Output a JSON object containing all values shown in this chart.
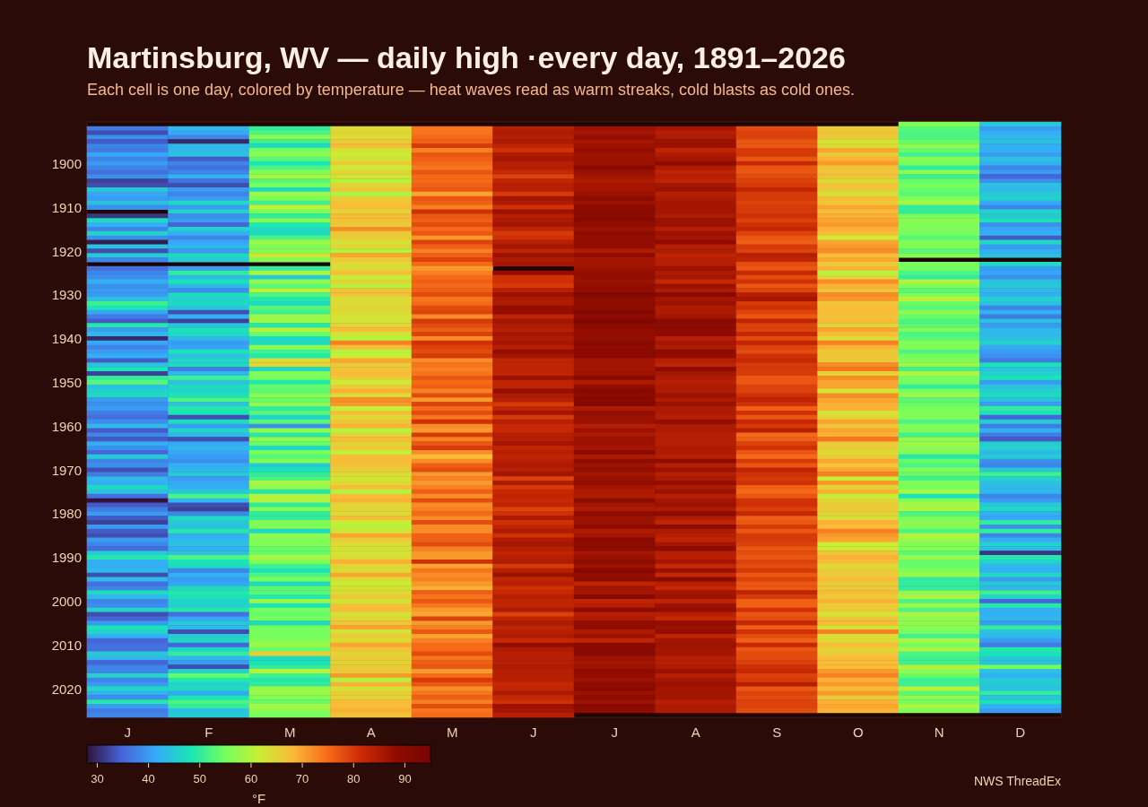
{
  "chart_data": {
    "type": "heatmap",
    "title": "Martinsburg, WV — daily high ·every day, 1891–2026",
    "subtitle": "Each cell is one day, colored by temperature — heat waves read as warm streaks, cold blasts as cold ones.",
    "categories": [
      "J",
      "F",
      "M",
      "A",
      "M",
      "J",
      "J",
      "A",
      "S",
      "O",
      "N",
      "D"
    ],
    "y_categories": [
      null,
      null,
      null,
      null,
      null,
      null,
      null,
      null,
      null,
      "1900",
      null,
      null,
      null,
      null,
      null,
      null,
      null,
      null,
      null,
      "1910",
      null,
      null,
      null,
      null,
      null,
      null,
      null,
      null,
      null,
      "1920",
      null,
      null,
      null,
      null,
      null,
      null,
      null,
      null,
      null,
      "1930",
      null,
      null,
      null,
      null,
      null,
      null,
      null,
      null,
      null,
      "1940",
      null,
      null,
      null,
      null,
      null,
      null,
      null,
      null,
      null,
      "1950",
      null,
      null,
      null,
      null,
      null,
      null,
      null,
      null,
      null,
      "1960",
      null,
      null,
      null,
      null,
      null,
      null,
      null,
      null,
      null,
      "1970",
      null,
      null,
      null,
      null,
      null,
      null,
      null,
      null,
      null,
      "1980",
      null,
      null,
      null,
      null,
      null,
      null,
      null,
      null,
      null,
      "1990",
      null,
      null,
      null,
      null,
      null,
      null,
      null,
      null,
      null,
      "2000",
      null,
      null,
      null,
      null,
      null,
      null,
      null,
      null,
      null,
      "2010",
      null,
      null,
      null,
      null,
      null,
      null,
      null,
      null,
      null,
      "2020",
      null,
      null,
      null,
      null,
      null,
      null
    ],
    "cells": [
      [
        null,
        null,
        null,
        null,
        null,
        null,
        null,
        null,
        null,
        null,
        56,
        45
      ],
      [
        37,
        43,
        50,
        64,
        74,
        84,
        87,
        86,
        78,
        66,
        53,
        40
      ],
      [
        33,
        41,
        52,
        65,
        74,
        85,
        86,
        84,
        79,
        67,
        52,
        42
      ],
      [
        39,
        38,
        57,
        64,
        75,
        84,
        88,
        85,
        79,
        66,
        52,
        43
      ],
      [
        34,
        30,
        51,
        66,
        76,
        85,
        86,
        87,
        77,
        63,
        54,
        44
      ],
      [
        38,
        43,
        47,
        68,
        80,
        83,
        87,
        87,
        77,
        64,
        57,
        42
      ],
      [
        37,
        43,
        55,
        63,
        73,
        81,
        88,
        83,
        80,
        70,
        54,
        42
      ],
      [
        41,
        44,
        57,
        62,
        77,
        85,
        87,
        85,
        80,
        66,
        51,
        40
      ],
      [
        38,
        34,
        53,
        63,
        76,
        86,
        87,
        86,
        77,
        69,
        57,
        44
      ],
      [
        40,
        38,
        48,
        66,
        75,
        84,
        87,
        89,
        82,
        71,
        55,
        42
      ],
      [
        38,
        36,
        52,
        62,
        74,
        84,
        90,
        85,
        77,
        67,
        50,
        38
      ],
      [
        36,
        38,
        56,
        65,
        77,
        82,
        87,
        83,
        77,
        67,
        57,
        40
      ],
      [
        39,
        42,
        59,
        63,
        75,
        79,
        86,
        84,
        78,
        67,
        51,
        35
      ],
      [
        32,
        36,
        53,
        60,
        75,
        83,
        85,
        83,
        79,
        64,
        54,
        39
      ],
      [
        33,
        33,
        55,
        65,
        76,
        84,
        86,
        86,
        80,
        67,
        55,
        44
      ],
      [
        45,
        40,
        47,
        67,
        77,
        84,
        86,
        87,
        83,
        66,
        54,
        43
      ],
      [
        41,
        38,
        58,
        59,
        70,
        80,
        87,
        84,
        80,
        63,
        53,
        45
      ],
      [
        40,
        40,
        56,
        66,
        77,
        86,
        89,
        85,
        80,
        68,
        56,
        46
      ],
      [
        44,
        47,
        51,
        67,
        76,
        85,
        87,
        86,
        79,
        66,
        59,
        41
      ],
      [
        39,
        40,
        61,
        68,
        73,
        81,
        89,
        86,
        80,
        70,
        50,
        38
      ],
      [
        null,
        46,
        55,
        65,
        81,
        87,
        89,
        86,
        80,
        68,
        50,
        46
      ],
      [
        31,
        39,
        50,
        68,
        77,
        84,
        89,
        85,
        81,
        69,
        55,
        45
      ],
      [
        47,
        40,
        56,
        67,
        76,
        85,
        90,
        87,
        79,
        70,
        57,
        48
      ],
      [
        42,
        35,
        49,
        66,
        78,
        86,
        88,
        87,
        81,
        71,
        56,
        39
      ],
      [
        38,
        46,
        47,
        72,
        75,
        83,
        87,
        84,
        82,
        69,
        56,
        41
      ],
      [
        46,
        42,
        47,
        66,
        77,
        80,
        89,
        87,
        79,
        68,
        55,
        42
      ],
      [
        39,
        38,
        52,
        66,
        71,
        81,
        88,
        86,
        77,
        62,
        53,
        34
      ],
      [
        29,
        41,
        58,
        63,
        79,
        84,
        88,
        89,
        76,
        70,
        56,
        47
      ],
      [
        44,
        43,
        56,
        65,
        76,
        86,
        88,
        84,
        80,
        71,
        56,
        40
      ],
      [
        33,
        40,
        56,
        60,
        73,
        83,
        85,
        85,
        79,
        72,
        53,
        42
      ],
      [
        45,
        47,
        63,
        70,
        76,
        87,
        89,
        83,
        84,
        68,
        56,
        44
      ],
      [
        38,
        45,
        56,
        66,
        79,
        85,
        86,
        84,
        83,
        70,
        null,
        null
      ],
      [
        null,
        null,
        null,
        64,
        75,
        86,
        86,
        84,
        78,
        66,
        55,
        47
      ],
      [
        36,
        40,
        50,
        64,
        71,
        null,
        87,
        87,
        77,
        69,
        55,
        40
      ],
      [
        38,
        50,
        59,
        68,
        73,
        88,
        88,
        85,
        82,
        60,
        52,
        41
      ],
      [
        39,
        43,
        45,
        61,
        75,
        81,
        88,
        86,
        78,
        65,
        50,
        39
      ],
      [
        42,
        48,
        57,
        65,
        76,
        81,
        87,
        82,
        81,
        72,
        60,
        44
      ],
      [
        39,
        43,
        53,
        60,
        75,
        80,
        88,
        87,
        77,
        69,
        56,
        45
      ],
      [
        40,
        39,
        60,
        67,
        76,
        84,
        88,
        85,
        79,
        67,
        53,
        43
      ],
      [
        40,
        47,
        52,
        67,
        78,
        87,
        92,
        90,
        84,
        72,
        55,
        42
      ],
      [
        44,
        46,
        49,
        64,
        74,
        85,
        89,
        86,
        86,
        71,
        61,
        46
      ],
      [
        51,
        47,
        47,
        64,
        75,
        85,
        89,
        87,
        80,
        67,
        54,
        44
      ],
      [
        48,
        44,
        53,
        65,
        78,
        88,
        89,
        85,
        81,
        68,
        53,
        38
      ],
      [
        41,
        33,
        51,
        64,
        79,
        88,
        92,
        85,
        79,
        68,
        57,
        42
      ],
      [
        37,
        42,
        58,
        63,
        72,
        83,
        89,
        86,
        77,
        67,
        54,
        37
      ],
      [
        34,
        32,
        58,
        63,
        80,
        86,
        93,
        90,
        83,
        68,
        52,
        44
      ],
      [
        49,
        44,
        49,
        65,
        78,
        85,
        89,
        89,
        79,
        65,
        53,
        40
      ],
      [
        40,
        48,
        60,
        68,
        76,
        84,
        88,
        89,
        79,
        70,
        56,
        43
      ],
      [
        43,
        47,
        54,
        63,
        79,
        86,
        88,
        89,
        82,
        68,
        52,
        43
      ],
      [
        30,
        43,
        47,
        60,
        72,
        85,
        88,
        84,
        78,
        64,
        53,
        44
      ],
      [
        41,
        40,
        47,
        73,
        81,
        86,
        90,
        86,
        83,
        73,
        56,
        46
      ],
      [
        38,
        41,
        57,
        68,
        79,
        84,
        89,
        85,
        79,
        69,
        56,
        41
      ],
      [
        40,
        48,
        51,
        60,
        78,
        88,
        90,
        89,
        78,
        66,
        52,
        40
      ],
      [
        42,
        44,
        49,
        62,
        80,
        86,
        90,
        88,
        81,
        67,
        55,
        39
      ],
      [
        34,
        46,
        64,
        70,
        72,
        83,
        86,
        84,
        82,
        66,
        56,
        37
      ],
      [
        44,
        47,
        65,
        66,
        74,
        83,
        86,
        83,
        80,
        72,
        58,
        48
      ],
      [
        48,
        37,
        47,
        67,
        73,
        83,
        86,
        89,
        80,
        74,
        51,
        44
      ],
      [
        32,
        43,
        56,
        68,
        74,
        83,
        87,
        86,
        80,
        65,
        60,
        46
      ],
      [
        50,
        51,
        55,
        66,
        77,
        87,
        90,
        85,
        77,
        72,
        55,
        48
      ],
      [
        53,
        44,
        49,
        62,
        75,
        83,
        85,
        84,
        77,
        70,
        55,
        40
      ],
      [
        44,
        47,
        54,
        66,
        76,
        83,
        88,
        85,
        79,
        70,
        50,
        44
      ],
      [
        46,
        46,
        53,
        69,
        73,
        88,
        91,
        85,
        79,
        63,
        55,
        46
      ],
      [
        47,
        48,
        57,
        64,
        78,
        85,
        89,
        87,
        81,
        72,
        58,
        47
      ],
      [
        40,
        52,
        54,
        72,
        71,
        84,
        90,
        85,
        83,
        70,
        53,
        44
      ],
      [
        39,
        44,
        57,
        71,
        79,
        80,
        92,
        87,
        81,
        69,
        54,
        40
      ],
      [
        40,
        49,
        50,
        61,
        75,
        83,
        85,
        85,
        76,
        69,
        55,
        50
      ],
      [
        37,
        48,
        53,
        68,
        78,
        86,
        88,
        85,
        81,
        63,
        56,
        48
      ],
      [
        36,
        33,
        46,
        64,
        74,
        80,
        87,
        84,
        77,
        65,
        56,
        35
      ],
      [
        39,
        47,
        53,
        67,
        81,
        84,
        87,
        88,
        82,
        70,
        52,
        45
      ],
      [
        43,
        40,
        39,
        69,
        72,
        82,
        84,
        85,
        80,
        67,
        56,
        37
      ],
      [
        34,
        46,
        57,
        60,
        71,
        82,
        87,
        85,
        84,
        70,
        56,
        42
      ],
      [
        38,
        43,
        49,
        65,
        80,
        84,
        85,
        84,
        75,
        69,
        51,
        37
      ],
      [
        34,
        33,
        57,
        68,
        73,
        84,
        87,
        84,
        76,
        74,
        57,
        34
      ],
      [
        42,
        41,
        54,
        65,
        77,
        86,
        87,
        84,
        79,
        66,
        58,
        45
      ],
      [
        39,
        43,
        47,
        66,
        80,
        83,
        86,
        85,
        81,
        66,
        57,
        46
      ],
      [
        35,
        41,
        55,
        61,
        72,
        84,
        90,
        85,
        77,
        64,
        56,
        43
      ],
      [
        45,
        40,
        53,
        68,
        68,
        83,
        85,
        84,
        75,
        66,
        49,
        45
      ],
      [
        38,
        39,
        56,
        68,
        72,
        84,
        89,
        89,
        80,
        70,
        54,
        39
      ],
      [
        39,
        42,
        45,
        67,
        76,
        85,
        87,
        84,
        77,
        67,
        52,
        38
      ],
      [
        33,
        43,
        48,
        66,
        78,
        84,
        88,
        87,
        83,
        70,
        56,
        45
      ],
      [
        37,
        45,
        50,
        64,
        71,
        86,
        86,
        84,
        81,
        73,
        54,
        51
      ],
      [
        43,
        40,
        52,
        63,
        73,
        79,
        87,
        85,
        80,
        62,
        51,
        46
      ],
      [
        42,
        41,
        59,
        64,
        71,
        85,
        88,
        88,
        81,
        71,
        56,
        44
      ],
      [
        47,
        42,
        57,
        68,
        73,
        80,
        86,
        85,
        76,
        65,
        55,
        43
      ],
      [
        44,
        45,
        49,
        60,
        76,
        82,
        85,
        87,
        75,
        69,
        59,
        43
      ],
      [
        36,
        52,
        60,
        68,
        72,
        83,
        85,
        84,
        77,
        61,
        48,
        38
      ],
      [
        27,
        43,
        60,
        69,
        78,
        82,
        89,
        86,
        81,
        65,
        56,
        40
      ],
      [
        34,
        33,
        50,
        65,
        72,
        83,
        86,
        87,
        81,
        66,
        59,
        45
      ],
      [
        37,
        32,
        56,
        65,
        73,
        79,
        85,
        85,
        79,
        66,
        59,
        47
      ],
      [
        40,
        38,
        50,
        64,
        75,
        81,
        89,
        89,
        82,
        65,
        52,
        42
      ],
      [
        34,
        47,
        50,
        68,
        72,
        85,
        87,
        85,
        76,
        64,
        55,
        41
      ],
      [
        32,
        45,
        56,
        62,
        78,
        81,
        87,
        83,
        77,
        69,
        57,
        50
      ],
      [
        40,
        44,
        56,
        60,
        72,
        83,
        89,
        89,
        80,
        68,
        56,
        39
      ],
      [
        34,
        49,
        47,
        63,
        72,
        85,
        85,
        85,
        77,
        73,
        52,
        50
      ],
      [
        33,
        42,
        57,
        70,
        76,
        81,
        86,
        84,
        80,
        71,
        60,
        38
      ],
      [
        40,
        43,
        56,
        66,
        76,
        85,
        91,
        83,
        80,
        70,
        58,
        42
      ],
      [
        38,
        44,
        56,
        64,
        78,
        86,
        89,
        86,
        79,
        62,
        56,
        46
      ],
      [
        36,
        42,
        54,
        63,
        73,
        84,
        89,
        89,
        77,
        62,
        56,
        43
      ],
      [
        45,
        44,
        54,
        63,
        71,
        83,
        86,
        84,
        78,
        67,
        53,
        31
      ],
      [
        49,
        52,
        59,
        64,
        71,
        84,
        87,
        84,
        77,
        69,
        58,
        49
      ],
      [
        42,
        48,
        56,
        69,
        81,
        85,
        89,
        86,
        79,
        68,
        54,
        46
      ],
      [
        42,
        47,
        51,
        65,
        70,
        80,
        87,
        82,
        78,
        64,
        54,
        43
      ],
      [
        43,
        38,
        48,
        64,
        74,
        84,
        91,
        87,
        80,
        66,
        56,
        42
      ],
      [
        33,
        42,
        52,
        70,
        72,
        87,
        88,
        82,
        77,
        66,
        58,
        47
      ],
      [
        43,
        40,
        55,
        64,
        73,
        83,
        89,
        89,
        79,
        68,
        50,
        40
      ],
      [
        36,
        41,
        47,
        62,
        71,
        84,
        83,
        84,
        77,
        66,
        50,
        45
      ],
      [
        38,
        47,
        53,
        63,
        69,
        81,
        86,
        82,
        77,
        66,
        50,
        43
      ],
      [
        47,
        49,
        53,
        64,
        76,
        82,
        86,
        86,
        83,
        68,
        57,
        51
      ],
      [
        43,
        48,
        49,
        66,
        74,
        84,
        91,
        87,
        80,
        66,
        59,
        46
      ],
      [
        38,
        46,
        58,
        63,
        77,
        83,
        83,
        83,
        76,
        69,
        52,
        35
      ],
      [
        39,
        46,
        48,
        67,
        74,
        83,
        84,
        87,
        76,
        66,
        58,
        49
      ],
      [
        46,
        49,
        55,
        68,
        71,
        85,
        89,
        88,
        81,
        66,
        52,
        42
      ],
      [
        33,
        36,
        54,
        63,
        70,
        79,
        84,
        84,
        77,
        63,
        59,
        42
      ],
      [
        35,
        41,
        55,
        65,
        79,
        83,
        85,
        82,
        78,
        67,
        57,
        43
      ],
      [
        40,
        45,
        47,
        67,
        71,
        85,
        88,
        88,
        82,
        68,
        57,
        40
      ],
      [
        48,
        43,
        55,
        70,
        73,
        83,
        88,
        87,
        76,
        63,
        57,
        50
      ],
      [
        46,
        33,
        55,
        63,
        77,
        84,
        85,
        88,
        81,
        73,
        55,
        44
      ],
      [
        42,
        45,
        55,
        66,
        70,
        85,
        87,
        83,
        78,
        64,
        51,
        43
      ],
      [
        35,
        47,
        56,
        64,
        73,
        82,
        83,
        86,
        76,
        64,
        59,
        40
      ],
      [
        36,
        35,
        58,
        70,
        75,
        88,
        91,
        87,
        82,
        68,
        55,
        37
      ],
      [
        36,
        46,
        54,
        67,
        75,
        85,
        91,
        86,
        77,
        65,
        59,
        49
      ],
      [
        45,
        50,
        66,
        65,
        78,
        84,
        91,
        86,
        78,
        66,
        52,
        48
      ],
      [
        43,
        43,
        47,
        66,
        74,
        84,
        87,
        84,
        78,
        68,
        51,
        45
      ],
      [
        35,
        40,
        48,
        65,
        76,
        84,
        86,
        84,
        79,
        68,
        51,
        44
      ],
      [
        38,
        33,
        50,
        66,
        77,
        85,
        87,
        85,
        81,
        68,
        60,
        55
      ],
      [
        38,
        46,
        60,
        66,
        71,
        84,
        89,
        87,
        82,
        71,
        57,
        44
      ],
      [
        46,
        54,
        51,
        71,
        75,
        84,
        88,
        84,
        79,
        73,
        54,
        42
      ],
      [
        38,
        49,
        49,
        60,
        80,
        84,
        87,
        86,
        80,
        69,
        51,
        45
      ],
      [
        40,
        46,
        50,
        69,
        77,
        82,
        89,
        87,
        84,
        71,
        51,
        45
      ],
      [
        47,
        47,
        58,
        63,
        72,
        83,
        90,
        86,
        77,
        68,
        60,
        44
      ],
      [
        42,
        41,
        58,
        66,
        74,
        85,
        87,
        86,
        79,
        71,
        53,
        50
      ],
      [
        39,
        48,
        56,
        65,
        76,
        82,
        89,
        86,
        78,
        66,
        57,
        44
      ],
      [
        49,
        52,
        54,
        68,
        73,
        81,
        87,
        84,
        79,
        69,
        55,
        48
      ],
      [
        40,
        50,
        59,
        68,
        78,
        87,
        90,
        85,
        79,
        70,
        59,
        42
      ],
      [
        37,
        44,
        57,
        69,
        74,
        86,
        89,
        85,
        78,
        69,
        56,
        40
      ],
      [
        38,
        45,
        55,
        67,
        75,
        84,
        null,
        null,
        null,
        null,
        null,
        null
      ]
    ],
    "clim": [
      28,
      95
    ],
    "cticks": [
      30,
      40,
      50,
      60,
      70,
      80,
      90
    ],
    "clabel": "°F",
    "annotations": [
      "NWS ThreadEx"
    ]
  }
}
